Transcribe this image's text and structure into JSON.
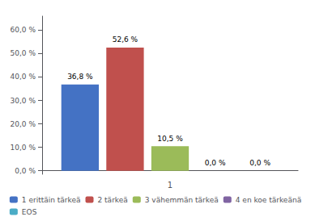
{
  "chart_data": {
    "type": "bar",
    "categories": [
      "1"
    ],
    "series": [
      {
        "name": "1 erittäin tärkeä",
        "color": "#4472C4",
        "values": [
          36.8
        ],
        "value_labels": [
          "36,8 %"
        ]
      },
      {
        "name": "2 tärkeä",
        "color": "#C0504D",
        "values": [
          52.6
        ],
        "value_labels": [
          "52,6 %"
        ]
      },
      {
        "name": "3 vähemmän tärkeä",
        "color": "#9BBB59",
        "values": [
          10.5
        ],
        "value_labels": [
          "10,5 %"
        ]
      },
      {
        "name": "4 en koe tärkeänä",
        "color": "#8064A2",
        "values": [
          0.0
        ],
        "value_labels": [
          "0,0 %"
        ]
      },
      {
        "name": "EOS",
        "color": "#4BACC6",
        "values": [
          0.0
        ],
        "value_labels": [
          "0,0 %"
        ]
      }
    ],
    "ylim": [
      -1.5,
      66
    ],
    "yticks": [
      {
        "value": 0,
        "label": "0,0 %"
      },
      {
        "value": 10,
        "label": "10,0 %"
      },
      {
        "value": 20,
        "label": "20,0 %"
      },
      {
        "value": 30,
        "label": "30,0 %"
      },
      {
        "value": 40,
        "label": "40,0 %"
      },
      {
        "value": 50,
        "label": "50,0 %"
      },
      {
        "value": 60,
        "label": "60,0 %"
      }
    ],
    "data_labels": true,
    "grid": false,
    "legend": "bottom"
  }
}
